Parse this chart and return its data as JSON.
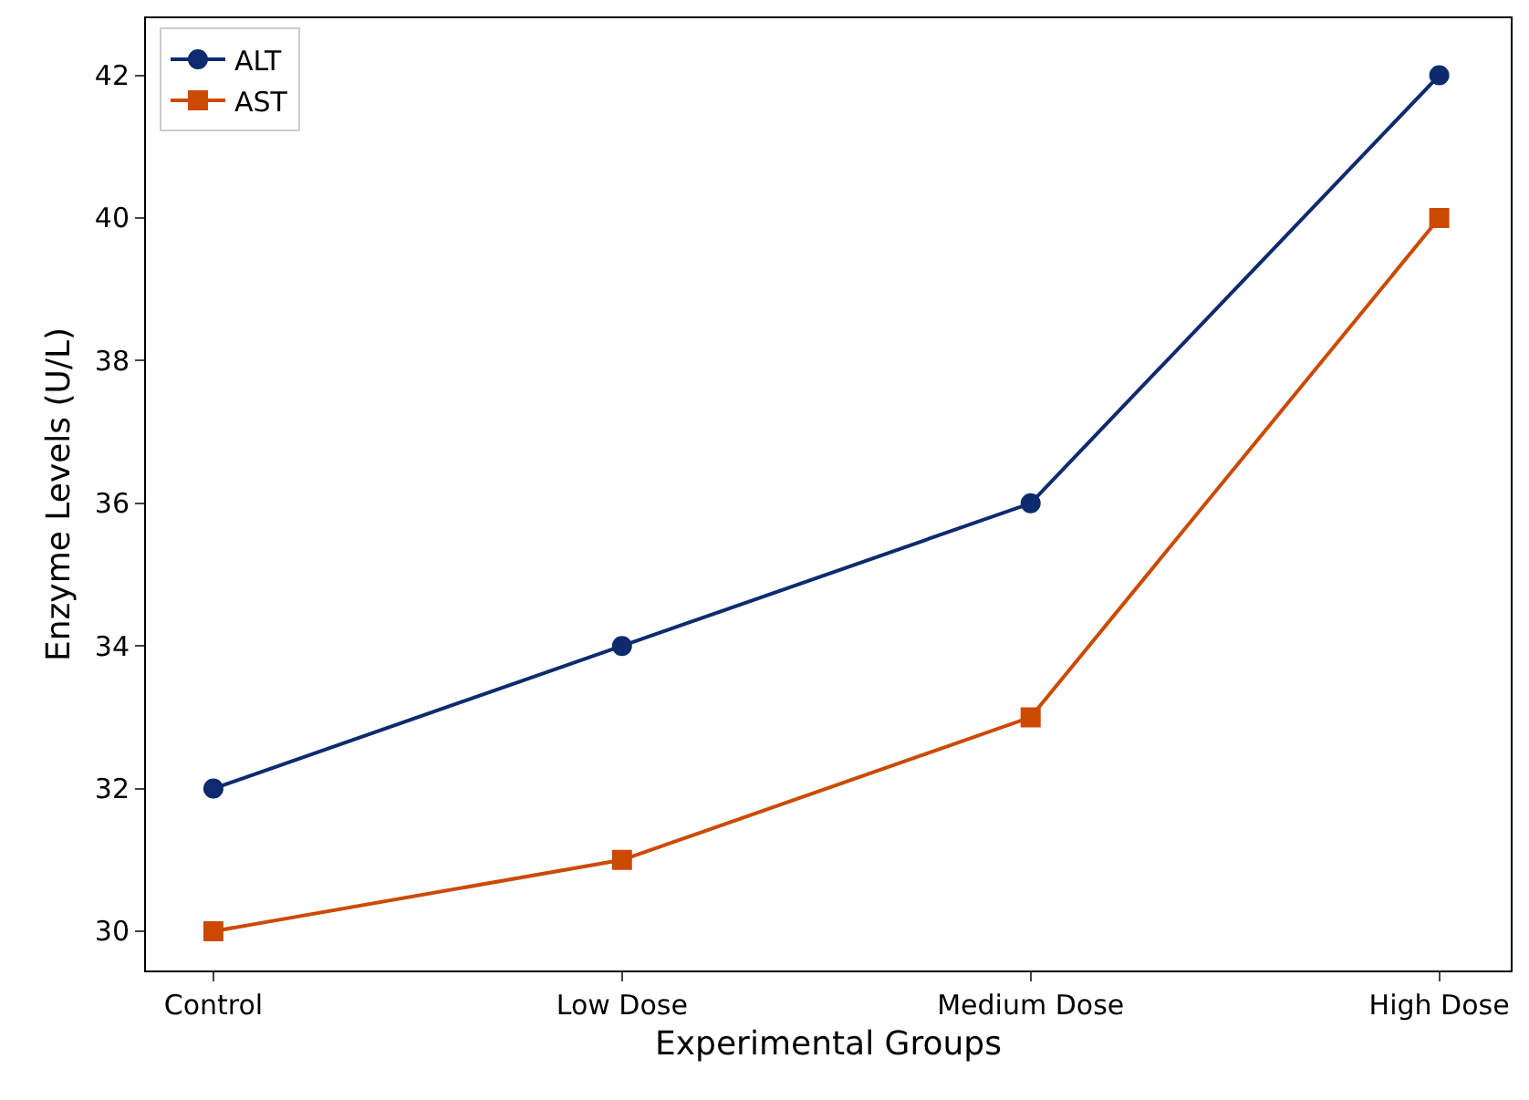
{
  "chart_data": {
    "type": "line",
    "xlabel": "Experimental Groups",
    "ylabel": "Enzyme Levels (U/L)",
    "categories": [
      "Control",
      "Low Dose",
      "Medium Dose",
      "High Dose"
    ],
    "series": [
      {
        "name": "ALT",
        "color": "#0d2b6e",
        "marker": "circle",
        "values": [
          32,
          34,
          36,
          42
        ]
      },
      {
        "name": "AST",
        "color": "#cc4a00",
        "marker": "square",
        "values": [
          30,
          31,
          33,
          40
        ]
      }
    ],
    "ylim": [
      29.45,
      42.8
    ],
    "yticks": [
      30,
      32,
      34,
      36,
      38,
      40,
      42
    ],
    "grid": false,
    "legend": "top left",
    "line_style": "solid"
  }
}
